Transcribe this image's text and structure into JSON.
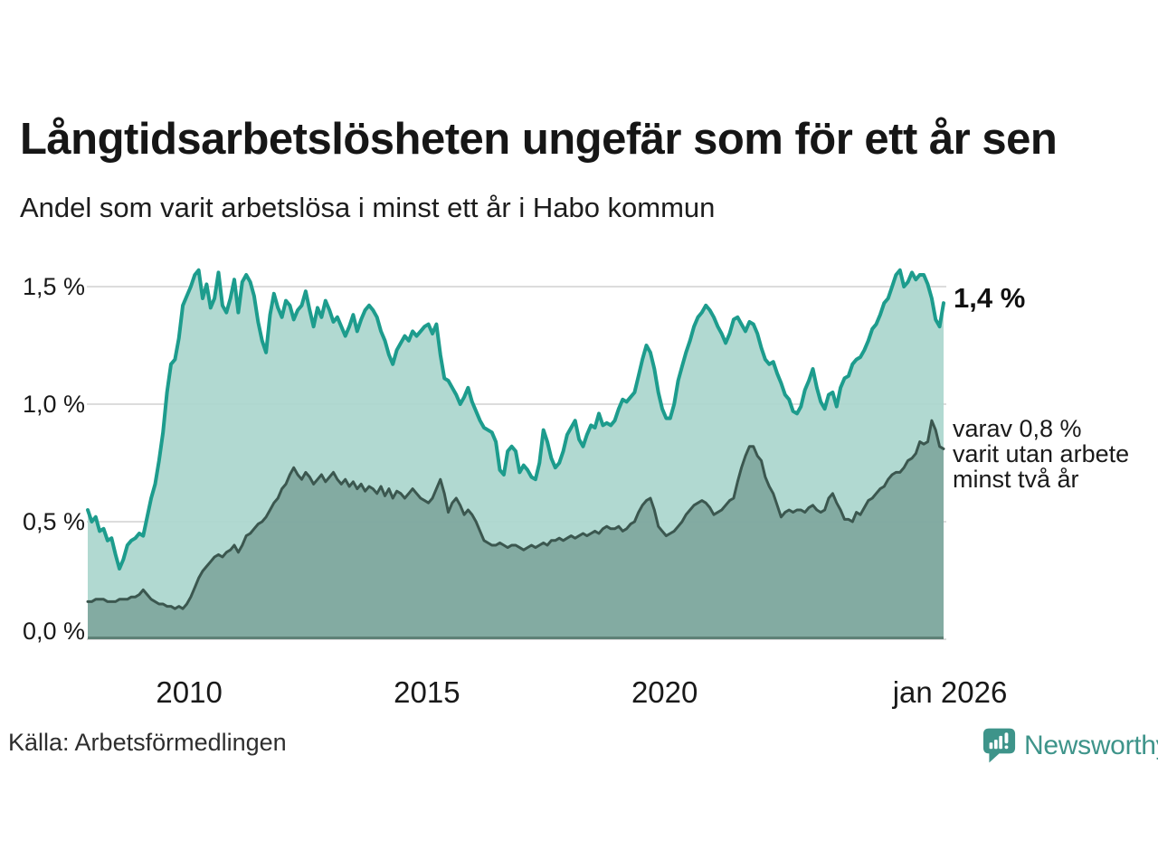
{
  "title": "Långtidsarbetslösheten ungefär som för ett år sen",
  "subtitle": "Andel som varit arbetslösa i minst ett år i Habo kommun",
  "source": "Källa: Arbetsförmedlingen",
  "branding": {
    "name": "Newsworthy"
  },
  "annotations": {
    "total_end": "1,4 %",
    "secondary": [
      "varav 0,8 %",
      "varit utan arbete",
      "minst två år"
    ]
  },
  "colors": {
    "total_line": "#1d9c8d",
    "total_fill": "#abd6ce",
    "two_year_line": "#3b574f",
    "two_year_fill": "#7fa79e",
    "gridline": "#dcdcdc",
    "baseline": "#5e8177",
    "brand_teal": "#3e948a",
    "text": "#161616"
  },
  "chart_data": {
    "type": "area",
    "title": "Långtidsarbetslösheten ungefär som för ett år sen",
    "subtitle": "Andel som varit arbetslösa i minst ett år i Habo kommun",
    "x_start_year": 2008,
    "x_end_year": 2026,
    "points_per_year": 12,
    "ylim": [
      0,
      1.65
    ],
    "grid": true,
    "x_ticks": [
      {
        "label": "2010",
        "year": 2010
      },
      {
        "label": "2015",
        "year": 2015
      },
      {
        "label": "2020",
        "year": 2020
      },
      {
        "label": "jan 2026",
        "year": 2026
      }
    ],
    "y_ticks": [
      {
        "label": "0,0 %",
        "value": 0
      },
      {
        "label": "0,5 %",
        "value": 0.5
      },
      {
        "label": "1,0 %",
        "value": 1.0
      },
      {
        "label": "1,5 %",
        "value": 1.5
      }
    ],
    "series": [
      {
        "name": "Andel som varit arbetslösa i minst ett år",
        "end_label": "1,4 %",
        "color": "#1d9c8d",
        "fill": "#abd6ce",
        "values": [
          0.55,
          0.5,
          0.52,
          0.46,
          0.47,
          0.42,
          0.43,
          0.36,
          0.3,
          0.34,
          0.4,
          0.42,
          0.43,
          0.45,
          0.44,
          0.52,
          0.6,
          0.66,
          0.76,
          0.88,
          1.05,
          1.17,
          1.19,
          1.28,
          1.42,
          1.46,
          1.5,
          1.55,
          1.57,
          1.45,
          1.51,
          1.41,
          1.45,
          1.56,
          1.42,
          1.39,
          1.45,
          1.53,
          1.39,
          1.52,
          1.55,
          1.52,
          1.46,
          1.35,
          1.27,
          1.22,
          1.38,
          1.47,
          1.41,
          1.37,
          1.44,
          1.42,
          1.36,
          1.4,
          1.42,
          1.48,
          1.4,
          1.33,
          1.41,
          1.37,
          1.44,
          1.4,
          1.35,
          1.37,
          1.33,
          1.29,
          1.33,
          1.38,
          1.31,
          1.36,
          1.4,
          1.42,
          1.4,
          1.37,
          1.31,
          1.27,
          1.21,
          1.17,
          1.23,
          1.26,
          1.29,
          1.27,
          1.31,
          1.29,
          1.31,
          1.33,
          1.34,
          1.3,
          1.34,
          1.21,
          1.11,
          1.1,
          1.07,
          1.04,
          1.0,
          1.03,
          1.07,
          1.01,
          0.97,
          0.93,
          0.9,
          0.89,
          0.88,
          0.84,
          0.72,
          0.7,
          0.8,
          0.82,
          0.8,
          0.71,
          0.74,
          0.72,
          0.69,
          0.68,
          0.75,
          0.89,
          0.84,
          0.77,
          0.73,
          0.75,
          0.8,
          0.87,
          0.9,
          0.93,
          0.85,
          0.82,
          0.87,
          0.91,
          0.9,
          0.96,
          0.91,
          0.92,
          0.91,
          0.93,
          0.98,
          1.02,
          1.01,
          1.03,
          1.05,
          1.12,
          1.19,
          1.25,
          1.22,
          1.15,
          1.05,
          0.98,
          0.94,
          0.94,
          1.0,
          1.1,
          1.16,
          1.22,
          1.27,
          1.33,
          1.37,
          1.39,
          1.42,
          1.4,
          1.37,
          1.33,
          1.3,
          1.26,
          1.3,
          1.36,
          1.37,
          1.34,
          1.31,
          1.35,
          1.34,
          1.3,
          1.24,
          1.19,
          1.17,
          1.18,
          1.13,
          1.09,
          1.04,
          1.02,
          0.97,
          0.96,
          0.99,
          1.06,
          1.1,
          1.15,
          1.07,
          1.01,
          0.98,
          1.04,
          1.05,
          0.99,
          1.07,
          1.11,
          1.12,
          1.17,
          1.19,
          1.2,
          1.23,
          1.27,
          1.32,
          1.34,
          1.38,
          1.43,
          1.45,
          1.5,
          1.55,
          1.57,
          1.5,
          1.52,
          1.56,
          1.53,
          1.55,
          1.55,
          1.51,
          1.45,
          1.36,
          1.33,
          1.43
        ]
      },
      {
        "name": "varav varit utan arbete minst två år",
        "end_label": "varav 0,8 % varit utan arbete minst två år",
        "color": "#3b574f",
        "fill": "#7fa79e",
        "values": [
          0.16,
          0.16,
          0.17,
          0.17,
          0.17,
          0.16,
          0.16,
          0.16,
          0.17,
          0.17,
          0.17,
          0.18,
          0.18,
          0.19,
          0.21,
          0.19,
          0.17,
          0.16,
          0.15,
          0.15,
          0.14,
          0.14,
          0.13,
          0.14,
          0.13,
          0.15,
          0.18,
          0.22,
          0.26,
          0.29,
          0.31,
          0.33,
          0.35,
          0.36,
          0.35,
          0.37,
          0.38,
          0.4,
          0.37,
          0.4,
          0.44,
          0.45,
          0.47,
          0.49,
          0.5,
          0.52,
          0.55,
          0.58,
          0.6,
          0.64,
          0.66,
          0.7,
          0.73,
          0.7,
          0.68,
          0.71,
          0.69,
          0.66,
          0.68,
          0.7,
          0.67,
          0.69,
          0.71,
          0.68,
          0.66,
          0.68,
          0.65,
          0.67,
          0.64,
          0.66,
          0.63,
          0.65,
          0.64,
          0.62,
          0.65,
          0.61,
          0.64,
          0.6,
          0.63,
          0.62,
          0.6,
          0.62,
          0.64,
          0.62,
          0.6,
          0.59,
          0.58,
          0.6,
          0.64,
          0.68,
          0.62,
          0.54,
          0.58,
          0.6,
          0.57,
          0.53,
          0.55,
          0.53,
          0.5,
          0.46,
          0.42,
          0.41,
          0.4,
          0.4,
          0.41,
          0.4,
          0.39,
          0.4,
          0.4,
          0.39,
          0.38,
          0.39,
          0.4,
          0.39,
          0.4,
          0.41,
          0.4,
          0.42,
          0.42,
          0.43,
          0.42,
          0.43,
          0.44,
          0.43,
          0.44,
          0.45,
          0.44,
          0.45,
          0.46,
          0.45,
          0.47,
          0.48,
          0.47,
          0.47,
          0.48,
          0.46,
          0.47,
          0.49,
          0.5,
          0.54,
          0.57,
          0.59,
          0.6,
          0.55,
          0.48,
          0.46,
          0.44,
          0.45,
          0.46,
          0.48,
          0.5,
          0.53,
          0.55,
          0.57,
          0.58,
          0.59,
          0.58,
          0.56,
          0.53,
          0.54,
          0.55,
          0.57,
          0.59,
          0.6,
          0.67,
          0.73,
          0.78,
          0.82,
          0.82,
          0.78,
          0.76,
          0.69,
          0.65,
          0.62,
          0.57,
          0.52,
          0.54,
          0.55,
          0.54,
          0.55,
          0.55,
          0.54,
          0.56,
          0.57,
          0.55,
          0.54,
          0.55,
          0.6,
          0.62,
          0.58,
          0.55,
          0.51,
          0.51,
          0.5,
          0.54,
          0.53,
          0.56,
          0.59,
          0.6,
          0.62,
          0.64,
          0.65,
          0.68,
          0.7,
          0.71,
          0.71,
          0.73,
          0.76,
          0.77,
          0.79,
          0.84,
          0.83,
          0.84,
          0.93,
          0.89,
          0.82,
          0.81
        ]
      }
    ]
  }
}
